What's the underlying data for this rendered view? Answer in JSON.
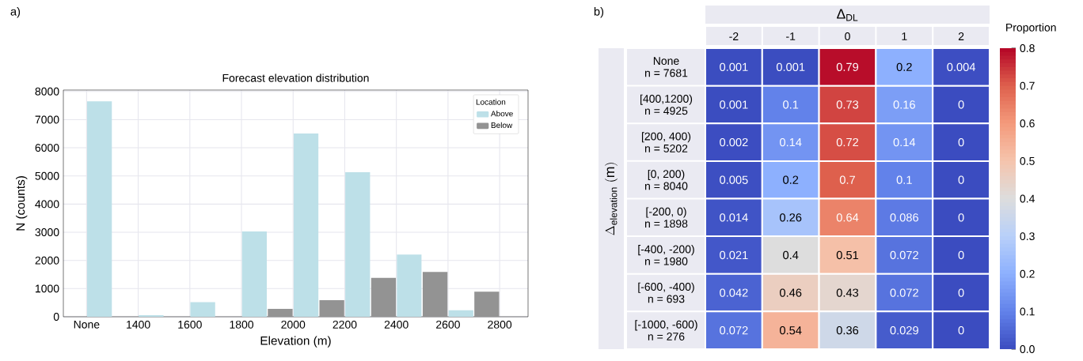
{
  "chart_data": [
    {
      "type": "bar",
      "title": "Forecast elevation distribution",
      "xlabel": "Elevation (m)",
      "ylabel": "N (counts)",
      "legend_title": "Location",
      "annotations": [
        "a)"
      ],
      "categories": [
        "None",
        "1400",
        "1600",
        "1800",
        "2000",
        "2200",
        "2400",
        "2600",
        "2800"
      ],
      "series": [
        {
          "name": "Above",
          "color": "#bde0e8",
          "values": [
            7650,
            60,
            520,
            3030,
            6510,
            5130,
            2210,
            230,
            null
          ]
        },
        {
          "name": "Below",
          "color": "#939393",
          "values": [
            null,
            null,
            null,
            null,
            280,
            590,
            1380,
            1590,
            890
          ]
        }
      ],
      "ylim": [
        0,
        8050
      ],
      "yticks": [
        0,
        1000,
        2000,
        3000,
        4000,
        5000,
        6000,
        7000,
        8000
      ],
      "grid": true,
      "legend": "top right"
    },
    {
      "type": "heatmap",
      "xlabel": "Δ$_{DL}$",
      "ylabel": "\\Delta_{\\mathrm{elevation}}\\ \\mathrm{(m)}",
      "clabel": "Proportion",
      "annotations": [
        "b)"
      ],
      "categories": [
        "-2",
        "-1",
        "0",
        "1",
        "2"
      ],
      "y_categories": [
        [
          "None",
          "n = 7681"
        ],
        [
          "[400,1200)",
          "n = 4925"
        ],
        [
          "[200, 400)",
          "n = 5202"
        ],
        [
          "[0, 200)",
          "n = 8040"
        ],
        [
          "[-200, 0)",
          "n = 1898"
        ],
        [
          "[-400, -200)",
          "n = 1980"
        ],
        [
          "[-600, -400)",
          "n = 693"
        ],
        [
          "[-1000, -600)",
          "n = 276"
        ]
      ],
      "cells": [
        [
          0.001,
          0.001,
          0.79,
          0.2,
          0.004
        ],
        [
          0.001,
          0.1,
          0.73,
          0.16,
          0
        ],
        [
          0.002,
          0.14,
          0.72,
          0.14,
          0
        ],
        [
          0.005,
          0.2,
          0.7,
          0.1,
          0
        ],
        [
          0.014,
          0.26,
          0.64,
          0.086,
          0
        ],
        [
          0.021,
          0.4,
          0.51,
          0.072,
          0
        ],
        [
          0.042,
          0.46,
          0.43,
          0.072,
          0
        ],
        [
          0.072,
          0.54,
          0.36,
          0.029,
          0
        ]
      ],
      "clim": [
        0,
        0.8
      ],
      "cticks": [
        {
          "value": 0,
          "label": "0.0"
        },
        0.1,
        0.2,
        0.3,
        0.4,
        0.5,
        0.6,
        0.7,
        0.8
      ],
      "data_labels": true
    }
  ]
}
